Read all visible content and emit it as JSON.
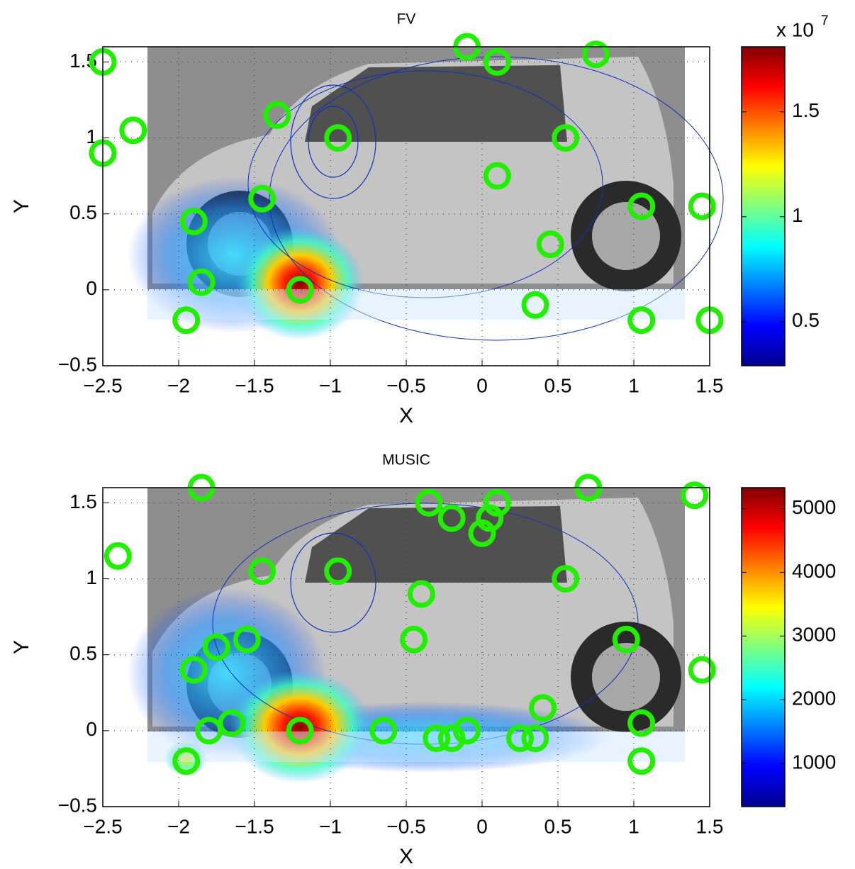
{
  "chart_data": [
    {
      "type": "scatter",
      "title": "FV",
      "xlabel": "X",
      "ylabel": "Y",
      "xlim": [
        -2.5,
        1.5
      ],
      "ylim": [
        -0.5,
        1.6
      ],
      "xticks": [
        {
          "value": -2.5,
          "label": "−2.5"
        },
        {
          "value": -2,
          "label": "−2"
        },
        {
          "value": -1.5,
          "label": "−1.5"
        },
        {
          "value": -1,
          "label": "−1"
        },
        {
          "value": -0.5,
          "label": "−0.5"
        },
        0,
        0.5,
        1,
        1.5
      ],
      "yticks": [
        {
          "value": -0.5,
          "label": "−0.5"
        },
        0,
        0.5,
        1,
        1.5
      ],
      "grid": true,
      "color": "#22ee00",
      "x": [
        -2.5,
        -2.3,
        -2.5,
        -1.35,
        -0.95,
        -0.1,
        0.1,
        0.75,
        0.55,
        0.1,
        -1.45,
        -1.9,
        1.05,
        1.45,
        0.45,
        -1.85,
        -1.2,
        -1.95,
        0.35,
        1.05,
        1.5
      ],
      "y": [
        1.5,
        1.05,
        0.9,
        1.15,
        1.0,
        1.6,
        1.5,
        1.55,
        1.0,
        0.75,
        0.6,
        0.45,
        0.55,
        0.55,
        0.3,
        0.05,
        0.0,
        -0.2,
        -0.1,
        -0.2,
        -0.2
      ],
      "colorbar": {
        "colormap": "jet",
        "lim": [
          0.29,
          1.81
        ],
        "ticks": [
          0.5,
          1,
          1.5
        ],
        "multiplier": "x 10",
        "exponent": "7"
      }
    },
    {
      "type": "scatter",
      "title": "MUSIC",
      "xlabel": "X",
      "ylabel": "Y",
      "xlim": [
        -2.5,
        1.5
      ],
      "ylim": [
        -0.5,
        1.6
      ],
      "xticks": [
        {
          "value": -2.5,
          "label": "−2.5"
        },
        {
          "value": -2,
          "label": "−2"
        },
        {
          "value": -1.5,
          "label": "−1.5"
        },
        {
          "value": -1,
          "label": "−1"
        },
        {
          "value": -0.5,
          "label": "−0.5"
        },
        0,
        0.5,
        1,
        1.5
      ],
      "yticks": [
        {
          "value": -0.5,
          "label": "−0.5"
        },
        0,
        0.5,
        1,
        1.5
      ],
      "grid": true,
      "color": "#22ee00",
      "x": [
        -1.85,
        -2.4,
        -1.45,
        -0.95,
        -0.35,
        -0.2,
        0.1,
        0.05,
        0.0,
        0.7,
        1.4,
        0.55,
        -0.4,
        -0.45,
        -1.75,
        -1.55,
        -1.9,
        0.95,
        1.45,
        0.4,
        -1.8,
        -1.65,
        -1.2,
        -0.65,
        -0.3,
        -0.2,
        -0.1,
        0.25,
        0.35,
        1.05,
        1.05,
        -1.95
      ],
      "y": [
        1.6,
        1.15,
        1.05,
        1.05,
        1.5,
        1.4,
        1.5,
        1.4,
        1.3,
        1.6,
        1.55,
        1.0,
        0.9,
        0.6,
        0.55,
        0.6,
        0.4,
        0.6,
        0.4,
        0.15,
        0.0,
        0.05,
        0.0,
        0.0,
        -0.05,
        -0.05,
        0.0,
        -0.05,
        -0.05,
        0.05,
        -0.2,
        -0.2
      ],
      "colorbar": {
        "colormap": "jet",
        "lim": [
          320,
          5330
        ],
        "ticks": [
          1000,
          2000,
          3000,
          4000,
          5000
        ]
      }
    }
  ]
}
